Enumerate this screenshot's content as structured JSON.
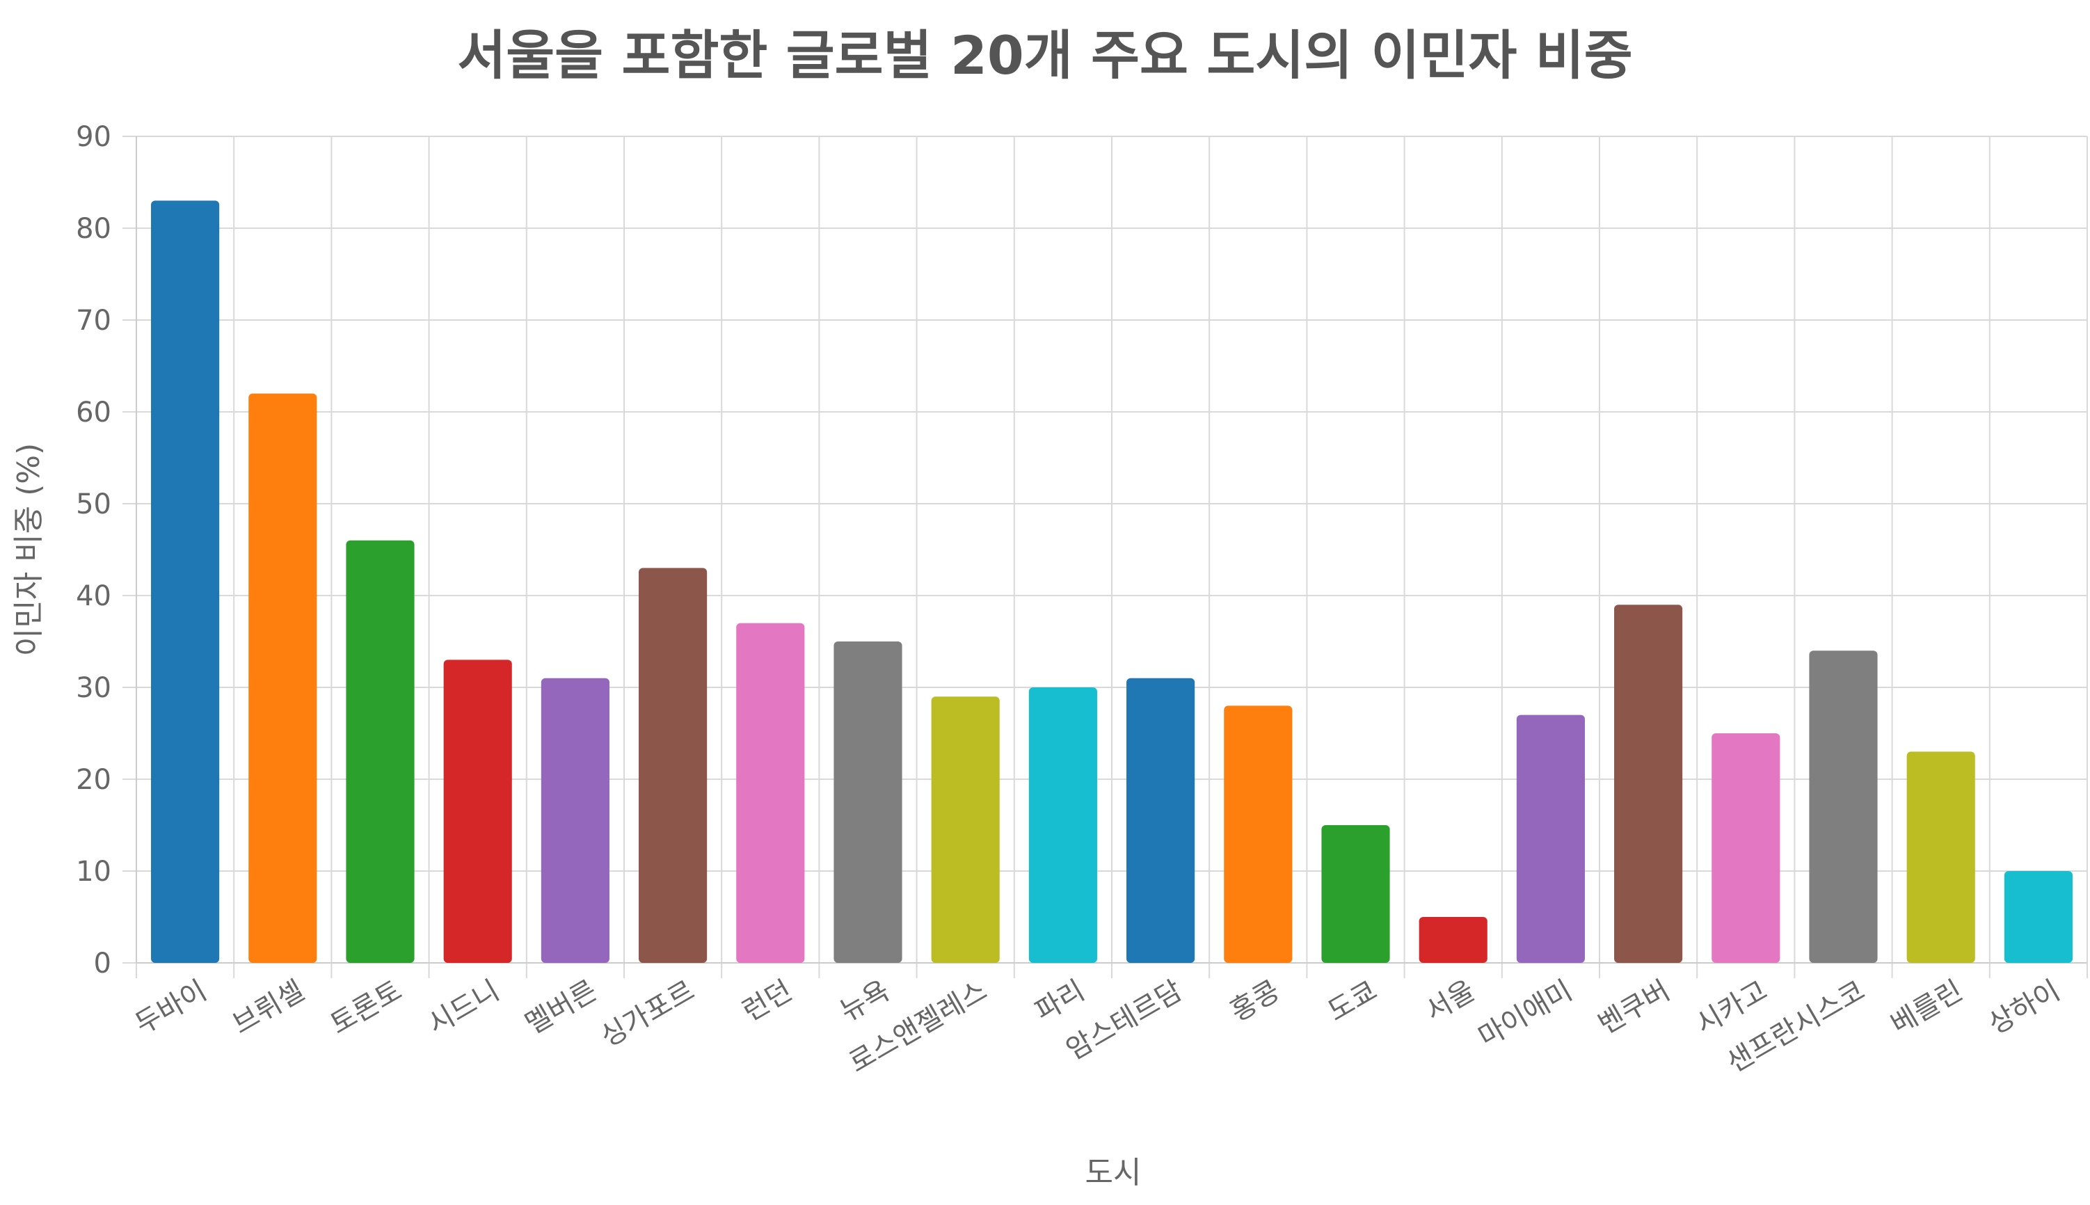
{
  "chart_data": {
    "type": "bar",
    "title": "서울을 포함한 글로벌 20개 주요 도시의 이민자 비중",
    "xlabel": "도시",
    "ylabel": "이민자 비중 (%)",
    "ylim": [
      0,
      90
    ],
    "yticks": [
      0,
      10,
      20,
      30,
      40,
      50,
      60,
      70,
      80,
      90
    ],
    "grid": true,
    "categories": [
      "두바이",
      "브뤼셀",
      "토론토",
      "시드니",
      "멜버른",
      "싱가포르",
      "런던",
      "뉴욕",
      "로스앤젤레스",
      "파리",
      "암스테르담",
      "홍콩",
      "도쿄",
      "서울",
      "마이애미",
      "벤쿠버",
      "시카고",
      "샌프란시스코",
      "베를린",
      "상하이"
    ],
    "values": [
      83,
      62,
      46,
      33,
      31,
      43,
      37,
      35,
      29,
      30,
      31,
      28,
      15,
      5,
      27,
      39,
      25,
      34,
      23,
      10
    ],
    "colors": [
      "#1f77b4",
      "#ff7f0e",
      "#2ca02c",
      "#d62728",
      "#9467bd",
      "#8c564b",
      "#e377c2",
      "#7f7f7f",
      "#bcbd22",
      "#17becf",
      "#1f77b4",
      "#ff7f0e",
      "#2ca02c",
      "#d62728",
      "#9467bd",
      "#8c564b",
      "#e377c2",
      "#7f7f7f",
      "#bcbd22",
      "#17becf"
    ]
  }
}
